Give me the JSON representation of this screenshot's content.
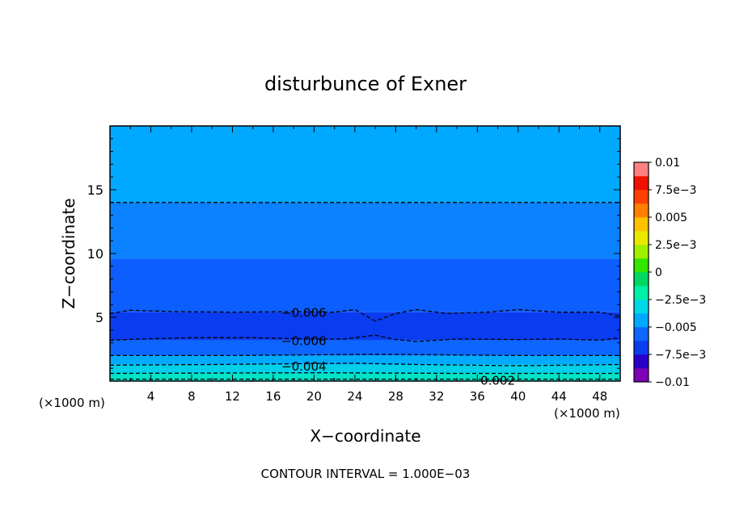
{
  "chart_data": {
    "type": "contour",
    "title": "disturbunce of Exner",
    "xlabel": "X−coordinate",
    "ylabel": "Z−coordinate",
    "x_unit_left": "(×1000 m)",
    "x_unit_right": "(×1000 m)",
    "xlim": [
      0,
      50
    ],
    "ylim": [
      0,
      20
    ],
    "x_ticks": [
      4,
      8,
      12,
      16,
      20,
      24,
      28,
      32,
      36,
      40,
      44,
      48
    ],
    "x_tick_labels": [
      "4",
      "8",
      "12",
      "16",
      "20",
      "24",
      "28",
      "32",
      "36",
      "40",
      "44",
      "48"
    ],
    "y_ticks": [
      5,
      10,
      15
    ],
    "y_tick_labels": [
      "5",
      "10",
      "15"
    ],
    "footer": "CONTOUR INTERVAL = 1.000E−03",
    "contour_interval": 0.001,
    "fill_bands": [
      {
        "zmin": 14.0,
        "zmax": 20.0,
        "color": "#00a8ff"
      },
      {
        "zmin": 9.6,
        "zmax": 14.0,
        "color": "#0a82ff"
      },
      {
        "zmin": 5.4,
        "zmax": 9.6,
        "color": "#0c5eff"
      },
      {
        "zmin": 3.2,
        "zmax": 5.4,
        "color": "#0a3cf0"
      },
      {
        "zmin": 2.0,
        "zmax": 3.2,
        "color": "#0c66ff"
      },
      {
        "zmin": 1.3,
        "zmax": 2.0,
        "color": "#00aaff"
      },
      {
        "zmin": 0.6,
        "zmax": 1.3,
        "color": "#00d0e8"
      },
      {
        "zmin": 0.0,
        "zmax": 0.6,
        "color": "#00e4c8"
      }
    ],
    "contour_lines": [
      {
        "name": "line-z14",
        "points": [
          [
            0,
            14.0
          ],
          [
            50,
            14.0
          ]
        ]
      },
      {
        "name": "line-z5p4",
        "points": [
          [
            0,
            5.3
          ],
          [
            2,
            5.55
          ],
          [
            6,
            5.45
          ],
          [
            12,
            5.4
          ],
          [
            18,
            5.45
          ],
          [
            22,
            5.4
          ],
          [
            24,
            5.6
          ],
          [
            26,
            4.7
          ],
          [
            28,
            5.3
          ],
          [
            30,
            5.6
          ],
          [
            33,
            5.3
          ],
          [
            37,
            5.4
          ],
          [
            40,
            5.6
          ],
          [
            44,
            5.4
          ],
          [
            48,
            5.4
          ],
          [
            50,
            5.1
          ]
        ]
      },
      {
        "name": "line-z3p2",
        "points": [
          [
            0,
            3.2
          ],
          [
            3,
            3.3
          ],
          [
            8,
            3.4
          ],
          [
            14,
            3.4
          ],
          [
            20,
            3.3
          ],
          [
            23,
            3.3
          ],
          [
            26,
            3.6
          ],
          [
            28,
            3.25
          ],
          [
            30,
            3.1
          ],
          [
            34,
            3.3
          ],
          [
            40,
            3.25
          ],
          [
            44,
            3.3
          ],
          [
            48,
            3.2
          ],
          [
            50,
            3.4
          ]
        ]
      },
      {
        "name": "line-z2p0",
        "points": [
          [
            0,
            2.0
          ],
          [
            12,
            2.0
          ],
          [
            26,
            2.1
          ],
          [
            40,
            2.0
          ],
          [
            50,
            2.0
          ]
        ]
      },
      {
        "name": "line-z1p3",
        "points": [
          [
            0,
            1.25
          ],
          [
            10,
            1.3
          ],
          [
            24,
            1.4
          ],
          [
            30,
            1.3
          ],
          [
            40,
            1.2
          ],
          [
            50,
            1.3
          ]
        ]
      },
      {
        "name": "line-z0p6",
        "points": [
          [
            0,
            0.6
          ],
          [
            20,
            0.65
          ],
          [
            34,
            0.6
          ],
          [
            50,
            0.6
          ]
        ]
      },
      {
        "name": "line-z0p2",
        "points": [
          [
            0,
            0.15
          ],
          [
            50,
            0.15
          ]
        ]
      }
    ],
    "contour_labels": [
      {
        "text": "−0.006",
        "x": 19,
        "z": 5.4
      },
      {
        "text": "−0.006",
        "x": 19,
        "z": 3.2
      },
      {
        "text": "−0.004",
        "x": 19,
        "z": 1.2
      },
      {
        "text": "0.002",
        "x": 38,
        "z": 0.1
      }
    ],
    "colorbar": {
      "vmin": -0.01,
      "vmax": 0.01,
      "colors": [
        "#7f00b4",
        "#2a00c8",
        "#0a3cf0",
        "#0c66ff",
        "#00a8ff",
        "#00d8e8",
        "#00f0a8",
        "#00d860",
        "#30e800",
        "#a0f000",
        "#e8e800",
        "#ffc000",
        "#ff8000",
        "#ff4000",
        "#f01000",
        "#ff8080"
      ],
      "labels": [
        "0.01",
        "7.5e−3",
        "0.005",
        "2.5e−3",
        "0",
        "−2.5e−3",
        "−0.005",
        "−7.5e−3",
        "−0.01"
      ]
    }
  }
}
